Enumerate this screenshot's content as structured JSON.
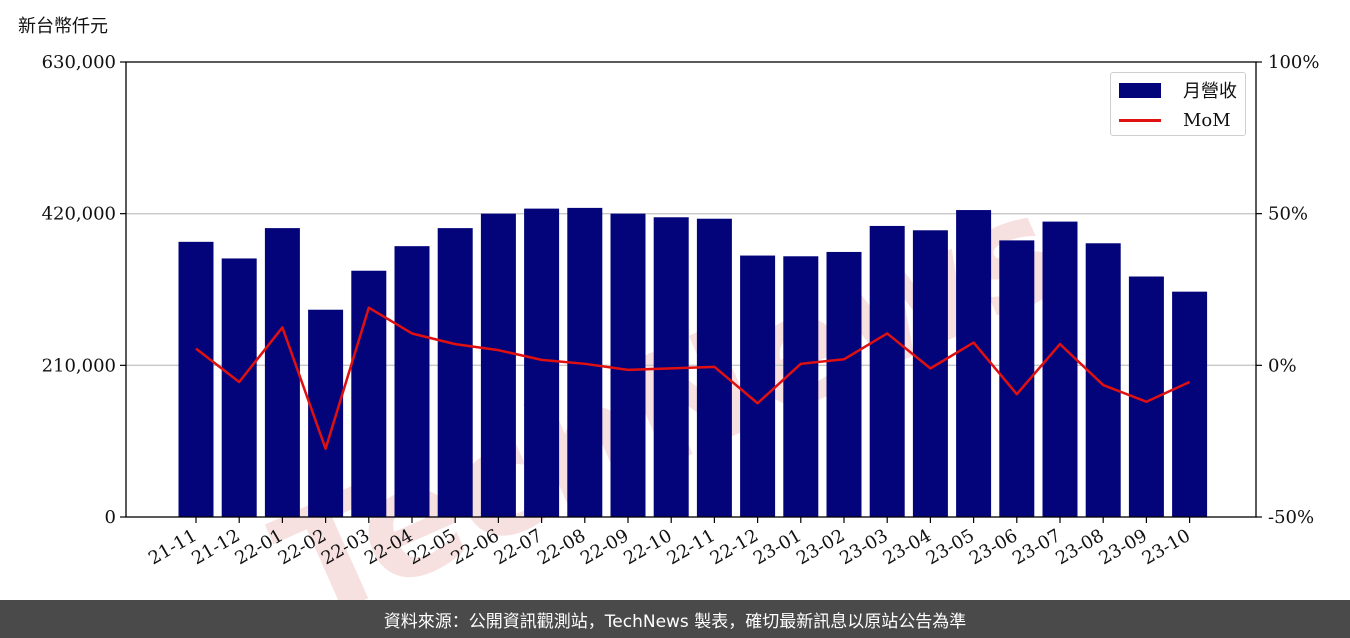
{
  "unit_label": "新台幣仟元",
  "footer_text": "資料來源：公開資訊觀測站，TechNews 製表，確切最新訊息以原站公告為準",
  "watermark_text": "TechNews",
  "colors": {
    "bar": "#04047a",
    "line": "#e01010",
    "grid": "#c8c8c8",
    "footer_bg": "#4a4a4a",
    "watermark": "#f2c7c7"
  },
  "legend": {
    "bar_label": "月營收",
    "line_label": "MoM",
    "placement": "upper-right"
  },
  "chart_data": {
    "type": "bar+line",
    "categories": [
      "21-11",
      "21-12",
      "22-01",
      "22-02",
      "22-03",
      "22-04",
      "22-05",
      "22-06",
      "22-07",
      "22-08",
      "22-09",
      "22-10",
      "22-11",
      "22-12",
      "23-01",
      "23-02",
      "23-03",
      "23-04",
      "23-05",
      "23-06",
      "23-07",
      "23-08",
      "23-09",
      "23-10"
    ],
    "series": [
      {
        "name": "月營收",
        "type": "bar",
        "axis": "left",
        "values": [
          381000,
          358000,
          400000,
          287000,
          341000,
          375000,
          400000,
          420000,
          427000,
          428000,
          420000,
          415000,
          413000,
          362000,
          361000,
          367000,
          403000,
          397000,
          425000,
          383000,
          409000,
          379000,
          333000,
          312000
        ]
      },
      {
        "name": "MoM",
        "type": "line",
        "axis": "right",
        "values": [
          5.5,
          -5.5,
          12.5,
          -27.5,
          19.0,
          10.5,
          7.0,
          5.0,
          1.8,
          0.5,
          -1.5,
          -1.0,
          -0.5,
          -12.5,
          0.5,
          2.0,
          10.5,
          -1.0,
          7.5,
          -9.5,
          7.0,
          -6.5,
          -12.0,
          -5.5
        ]
      }
    ],
    "y_left": {
      "min": 0,
      "max": 630000,
      "ticks": [
        0,
        210000,
        420000,
        630000
      ],
      "tick_labels": [
        "0",
        "210,000",
        "420,000",
        "630,000"
      ]
    },
    "y_right": {
      "min": -50,
      "max": 100,
      "ticks": [
        -50,
        0,
        50,
        100
      ],
      "tick_labels": [
        "-50%",
        "0%",
        "50%",
        "100%"
      ]
    },
    "grid": "horizontal"
  }
}
